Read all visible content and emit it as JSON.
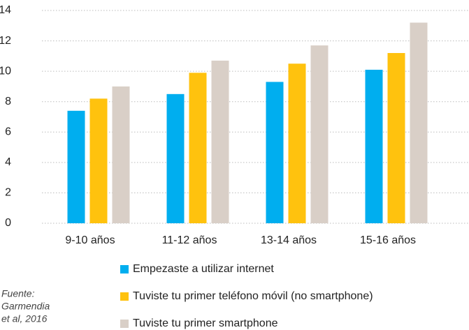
{
  "chart_data": {
    "type": "bar",
    "categories": [
      "9-10 años",
      "11-12 años",
      "13-14 años",
      "15-16 años"
    ],
    "series": [
      {
        "name": "Empezaste a utilizar internet",
        "color": "#00aeef",
        "values": [
          7.4,
          8.5,
          9.3,
          10.1
        ]
      },
      {
        "name": "Tuviste tu primer teléfono móvil (no smartphone)",
        "color": "#ffc20e",
        "values": [
          8.2,
          9.9,
          10.5,
          11.2
        ]
      },
      {
        "name": "Tuviste tu primer smartphone",
        "color": "#d9cfc7",
        "values": [
          9.0,
          10.7,
          11.7,
          13.2
        ]
      }
    ],
    "ylim": [
      0,
      14
    ],
    "yticks": [
      0,
      2,
      4,
      6,
      8,
      10,
      12,
      14
    ],
    "grid": true,
    "source": [
      "Fuente:",
      "Garmendia",
      "et al, 2016"
    ]
  }
}
